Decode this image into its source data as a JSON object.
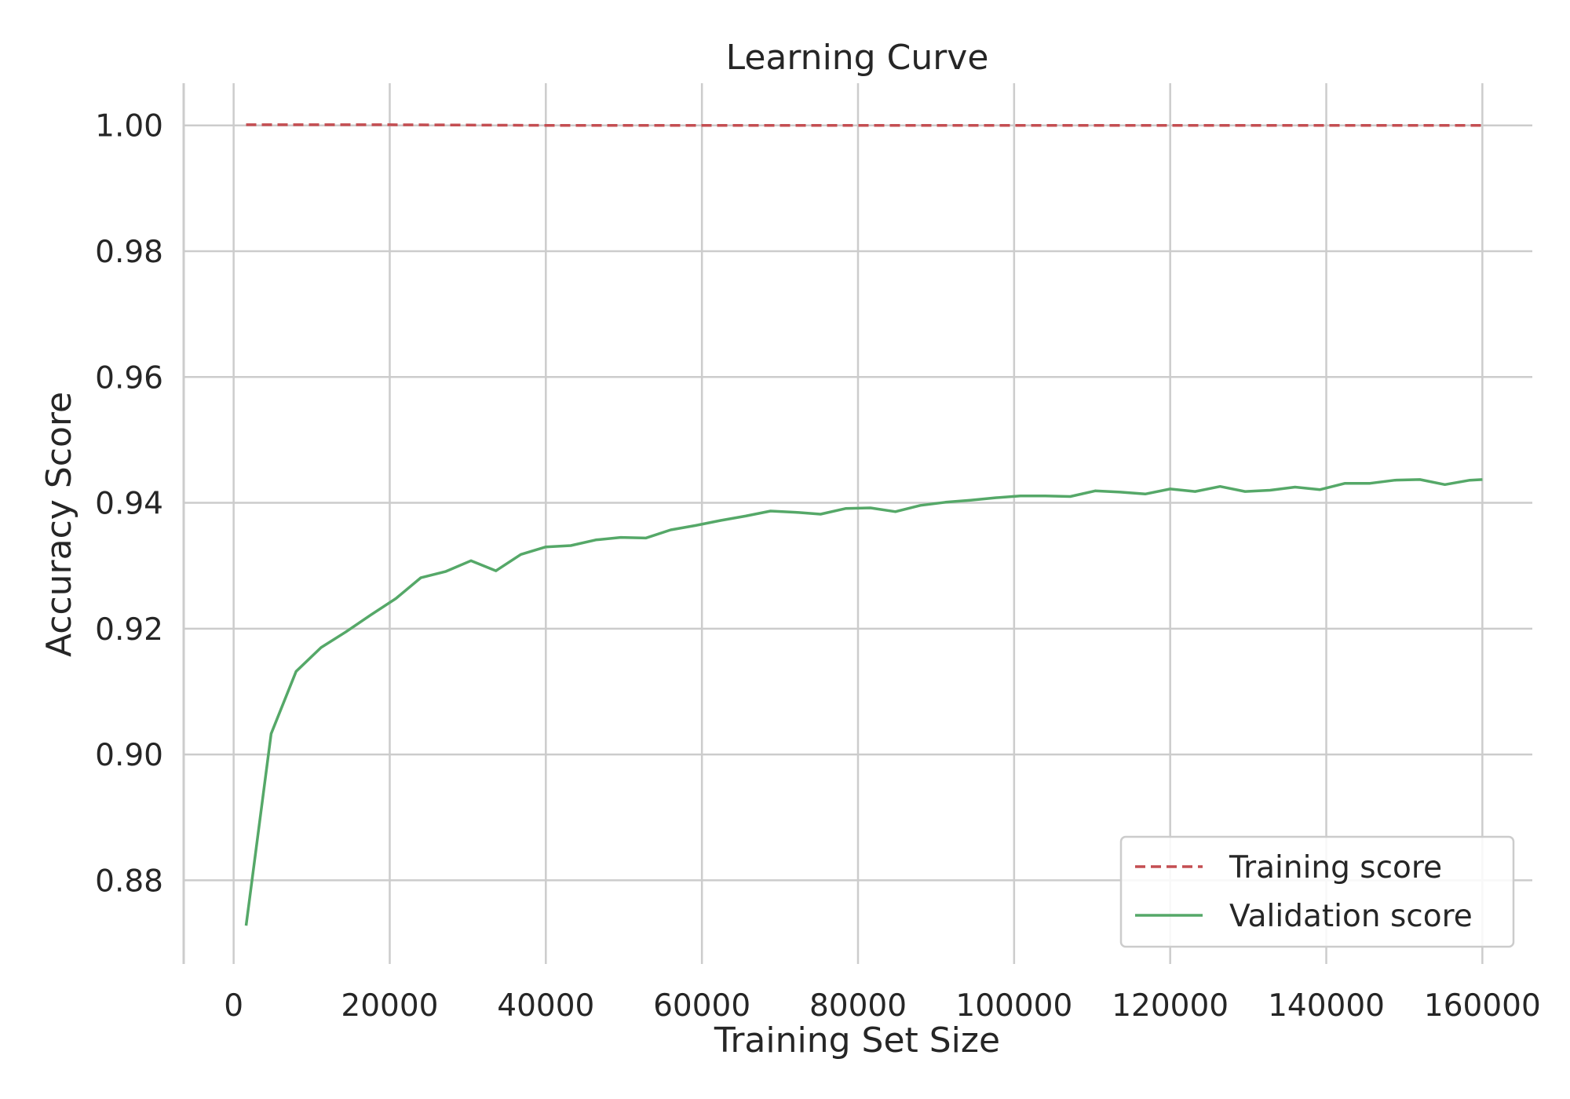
{
  "chart_data": {
    "type": "line",
    "title": "Learning Curve",
    "xlabel": "Training Set Size",
    "ylabel": "Accuracy Score",
    "xlim": [
      -6400,
      166400
    ],
    "ylim": [
      0.8667,
      1.0067
    ],
    "xticks": [
      0,
      20000,
      40000,
      60000,
      80000,
      100000,
      120000,
      140000,
      160000
    ],
    "xtick_labels": [
      "0",
      "20000",
      "40000",
      "60000",
      "80000",
      "100000",
      "120000",
      "140000",
      "160000"
    ],
    "yticks": [
      0.88,
      0.9,
      0.92,
      0.94,
      0.96,
      0.98,
      1.0
    ],
    "ytick_labels": [
      "0.88",
      "0.90",
      "0.92",
      "0.94",
      "0.96",
      "0.98",
      "1.00"
    ],
    "grid": true,
    "legend_position": "lower-right",
    "series": [
      {
        "name": "Training score",
        "color": "#c44e52",
        "style": "dashed",
        "x": [
          1600,
          20000,
          40000,
          60000,
          80000,
          100000,
          120000,
          140000,
          160000
        ],
        "y": [
          1.0001,
          1.0001,
          1.0,
          1.0,
          1.0,
          1.0,
          1.0,
          1.0,
          1.0
        ]
      },
      {
        "name": "Validation score",
        "color": "#55a868",
        "style": "solid",
        "x": [
          1600,
          4800,
          8000,
          11200,
          14400,
          17600,
          20800,
          24000,
          27200,
          30400,
          33600,
          36800,
          40000,
          43200,
          46400,
          49600,
          52800,
          56000,
          59200,
          62400,
          65600,
          68800,
          72000,
          75200,
          78400,
          81600,
          84800,
          88000,
          91200,
          94400,
          97600,
          100800,
          104000,
          107200,
          110400,
          113600,
          116800,
          120000,
          123200,
          126400,
          129600,
          132800,
          136000,
          139200,
          142400,
          145600,
          148800,
          152000,
          155200,
          158400,
          160000
        ],
        "y": [
          0.8728,
          0.9033,
          0.9132,
          0.917,
          0.9195,
          0.9222,
          0.9248,
          0.9281,
          0.9291,
          0.9308,
          0.9292,
          0.9318,
          0.933,
          0.9332,
          0.9341,
          0.9345,
          0.9344,
          0.9357,
          0.9364,
          0.9372,
          0.9379,
          0.9387,
          0.9385,
          0.9382,
          0.9391,
          0.9392,
          0.9386,
          0.9396,
          0.9401,
          0.9404,
          0.9408,
          0.9411,
          0.9411,
          0.941,
          0.9419,
          0.9417,
          0.9414,
          0.9422,
          0.9418,
          0.9426,
          0.9418,
          0.942,
          0.9425,
          0.9421,
          0.9431,
          0.9431,
          0.9436,
          0.9437,
          0.9429,
          0.9436,
          0.9437
        ]
      }
    ]
  }
}
